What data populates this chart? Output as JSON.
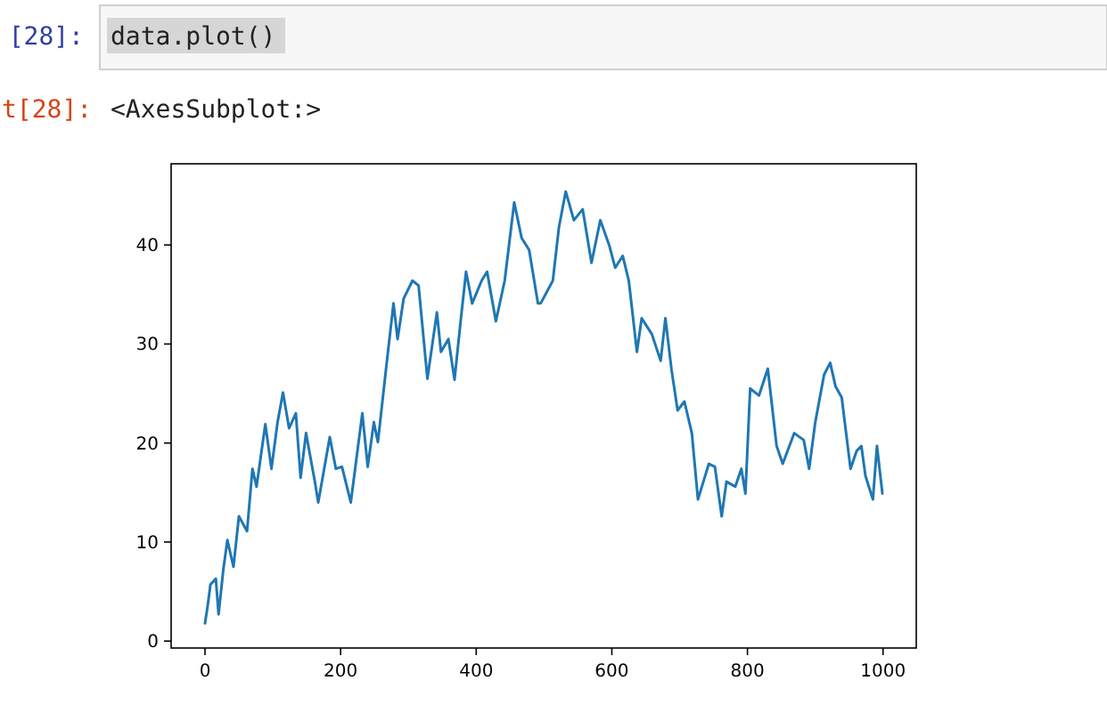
{
  "chart_data": {
    "type": "line",
    "annotations": [
      "[28]:",
      "data.plot()",
      "t[28]:",
      "<AxesSubplot:>"
    ],
    "x": [
      0,
      4,
      8,
      16,
      20,
      27,
      33,
      42,
      50,
      62,
      70,
      76,
      89,
      98,
      107,
      115,
      124,
      134,
      141,
      149,
      162,
      167,
      184,
      193,
      202,
      215,
      232,
      240,
      249,
      255,
      267,
      278,
      284,
      293,
      306,
      315,
      328,
      342,
      348,
      359,
      368,
      377,
      385,
      394,
      408,
      416,
      429,
      442,
      456,
      467,
      478,
      491,
      495,
      513,
      522,
      532,
      544,
      557,
      570,
      583,
      596,
      605,
      616,
      625,
      637,
      644,
      659,
      672,
      679,
      688,
      697,
      707,
      718,
      727,
      743,
      752,
      762,
      769,
      782,
      791,
      797,
      804,
      817,
      830,
      843,
      852,
      869,
      883,
      891,
      900,
      913,
      922,
      930,
      939,
      952,
      961,
      968,
      974,
      985,
      991,
      999
    ],
    "series": [
      {
        "color": "#1f77b4",
        "values": [
          1.8,
          3.6,
          5.7,
          6.3,
          2.7,
          7.2,
          10.2,
          7.5,
          12.6,
          11.1,
          17.4,
          15.6,
          21.9,
          17.4,
          22.1,
          25.1,
          21.5,
          23,
          16.5,
          21,
          16.1,
          14,
          20.6,
          17.4,
          17.6,
          14,
          23,
          17.6,
          22.1,
          20.1,
          27.5,
          34.1,
          30.5,
          34.6,
          36.4,
          35.9,
          26.5,
          33.2,
          29.2,
          30.5,
          26.4,
          32.3,
          37.3,
          34.1,
          36.4,
          37.3,
          32.3,
          36.4,
          44.3,
          40.7,
          39.5,
          34.1,
          34.1,
          36.4,
          41.8,
          45.4,
          42.5,
          43.6,
          38.2,
          42.5,
          40,
          37.7,
          38.9,
          36.4,
          29.2,
          32.6,
          31,
          28.3,
          32.6,
          27.4,
          23.3,
          24.2,
          21,
          14.3,
          17.9,
          17.6,
          12.6,
          16.1,
          15.6,
          17.4,
          14.9,
          25.5,
          24.8,
          27.5,
          19.7,
          17.9,
          21,
          20.3,
          17.4,
          22.1,
          26.9,
          28.1,
          25.7,
          24.6,
          17.4,
          19.2,
          19.7,
          16.7,
          14.3,
          19.7,
          14.9
        ]
      }
    ],
    "xlim": [
      -49.95,
      1048.95
    ],
    "ylim": [
      -0.7,
      48.2
    ],
    "xticks": [
      0,
      200,
      400,
      600,
      800,
      1000
    ],
    "yticks": [
      0,
      10,
      20,
      30,
      40
    ],
    "grid": false,
    "marker": "none",
    "line_style": "solid"
  }
}
